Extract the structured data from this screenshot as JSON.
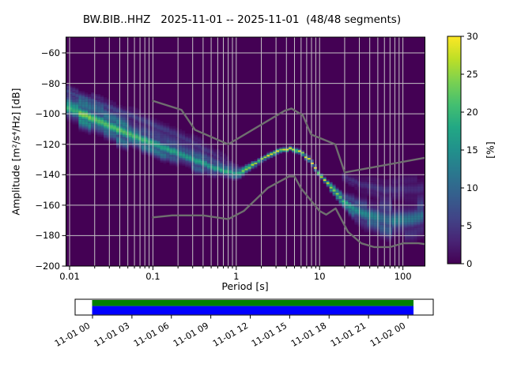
{
  "figure": {
    "title": "BW.BIB..HHZ   2025-11-01 -- 2025-11-01  (48/48 segments)",
    "background": "#ffffff"
  },
  "chart_data": {
    "type": "heatmap",
    "description": "PPSD probabilistic power spectral density plot, viridis colormap, with Peterson NLNM/NHNM noise model curves",
    "title": "BW.BIB..HHZ   2025-11-01 -- 2025-11-01  (48/48 segments)",
    "xlabel": "Period [s]",
    "ylabel": "Amplitude [m²/s⁴/Hz] [dB]",
    "xscale": "log",
    "xlim": [
      0.00906,
      183.9
    ],
    "ylim": [
      -200,
      -49.6
    ],
    "grid": true,
    "x_ticks": {
      "values": [
        0.01,
        0.1,
        1,
        10,
        100
      ],
      "labels": [
        "0.01",
        "0.1",
        "1",
        "10",
        "100"
      ]
    },
    "y_ticks": {
      "values": [
        -60,
        -80,
        -100,
        -120,
        -140,
        -160,
        -180,
        -200
      ],
      "labels": [
        "−60",
        "−80",
        "−100",
        "−120",
        "−140",
        "−160",
        "−180",
        "−200"
      ]
    },
    "grid_color": "#cbcbcb",
    "background_color": "#440154",
    "spine_color": "#000000",
    "colorbar": {
      "label": "[%]",
      "vmin": 0,
      "vmax": 30,
      "ticks": [
        0,
        5,
        10,
        15,
        20,
        25,
        30
      ],
      "tick_labels": [
        "0",
        "5",
        "10",
        "15",
        "20",
        "25",
        "30"
      ],
      "colormap": "viridis",
      "stops": [
        [
          0,
          "#440154"
        ],
        [
          0.1,
          "#482475"
        ],
        [
          0.2,
          "#414487"
        ],
        [
          0.3,
          "#355f8d"
        ],
        [
          0.4,
          "#2a788e"
        ],
        [
          0.5,
          "#21918c"
        ],
        [
          0.6,
          "#22a884"
        ],
        [
          0.7,
          "#44bf70"
        ],
        [
          0.8,
          "#7ad151"
        ],
        [
          0.9,
          "#bddf26"
        ],
        [
          1,
          "#fde725"
        ]
      ]
    },
    "noise_models": {
      "color": "#6f6f6f",
      "nhnm": [
        [
          0.1,
          -91.5
        ],
        [
          0.22,
          -97.4
        ],
        [
          0.32,
          -110.5
        ],
        [
          0.8,
          -120.0
        ],
        [
          3.8,
          -98.0
        ],
        [
          4.6,
          -96.5
        ],
        [
          6.3,
          -101.0
        ],
        [
          7.9,
          -113.5
        ],
        [
          15.4,
          -120.0
        ],
        [
          20.0,
          -138.5
        ],
        [
          354.8,
          -126.0
        ]
      ],
      "nlnm": [
        [
          0.1,
          -168.0
        ],
        [
          0.17,
          -166.7
        ],
        [
          0.4,
          -166.7
        ],
        [
          0.8,
          -169.2
        ],
        [
          1.24,
          -163.7
        ],
        [
          2.4,
          -148.6
        ],
        [
          4.3,
          -141.1
        ],
        [
          5.0,
          -141.1
        ],
        [
          6.0,
          -149.0
        ],
        [
          10.0,
          -163.8
        ],
        [
          12.0,
          -166.2
        ],
        [
          15.6,
          -162.1
        ],
        [
          21.9,
          -177.5
        ],
        [
          31.6,
          -185.0
        ],
        [
          45.0,
          -187.5
        ],
        [
          70.0,
          -187.5
        ],
        [
          101.0,
          -185.0
        ],
        [
          154.0,
          -185.0
        ],
        [
          328.0,
          -187.5
        ]
      ]
    },
    "mode_curve": [
      [
        0.01,
        -95.5
      ],
      [
        0.02,
        -103.5
      ],
      [
        0.05,
        -113
      ],
      [
        0.1,
        -119.5
      ],
      [
        0.2,
        -126
      ],
      [
        0.4,
        -132.5
      ],
      [
        0.7,
        -137.5
      ],
      [
        1.05,
        -139.5
      ],
      [
        1.4,
        -135.5
      ],
      [
        2,
        -130
      ],
      [
        3,
        -125
      ],
      [
        4.5,
        -122.5
      ],
      [
        6,
        -125
      ],
      [
        8,
        -131.5
      ],
      [
        10,
        -140
      ],
      [
        13,
        -147
      ],
      [
        16,
        -152
      ],
      [
        20,
        -158
      ],
      [
        27,
        -163
      ],
      [
        40,
        -167
      ],
      [
        70,
        -170
      ],
      [
        110,
        -169.5
      ],
      [
        184,
        -167
      ]
    ],
    "density_bands": [
      {
        "name": "main-ridge",
        "points": [
          [
            0.00906,
            -95.5,
            5,
            26
          ],
          [
            0.02,
            -103.5,
            5,
            24
          ],
          [
            0.05,
            -113,
            4.5,
            22
          ],
          [
            0.1,
            -119.5,
            4,
            20
          ],
          [
            0.2,
            -126,
            4,
            18
          ],
          [
            0.4,
            -132.5,
            3.5,
            18
          ],
          [
            0.7,
            -137.5,
            2.8,
            20
          ],
          [
            1.05,
            -139.5,
            2,
            24
          ],
          [
            1.4,
            -135.5,
            1.4,
            27
          ],
          [
            2,
            -130,
            1.1,
            29
          ],
          [
            3,
            -125,
            1,
            30
          ],
          [
            4.5,
            -122.5,
            1,
            30
          ],
          [
            6,
            -125,
            1,
            30
          ],
          [
            8,
            -131.5,
            1.1,
            30
          ],
          [
            10,
            -140,
            1.2,
            29
          ],
          [
            13,
            -147,
            1.4,
            28
          ],
          [
            16,
            -152,
            1.7,
            26
          ],
          [
            20,
            -158,
            2.5,
            20
          ],
          [
            27,
            -163,
            4.5,
            15
          ],
          [
            40,
            -167,
            6,
            14
          ],
          [
            70,
            -170,
            6.5,
            14
          ],
          [
            110,
            -169.5,
            6.5,
            13
          ],
          [
            184,
            -167,
            6.5,
            12
          ]
        ]
      },
      {
        "name": "upper-faint-short-period",
        "points": [
          [
            0.00906,
            -85,
            2.2,
            7
          ],
          [
            0.02,
            -92,
            2.5,
            6
          ],
          [
            0.05,
            -100,
            3,
            6
          ],
          [
            0.1,
            -107,
            3.5,
            6
          ],
          [
            0.2,
            -114,
            3.5,
            5
          ],
          [
            0.45,
            -124,
            3,
            5
          ],
          [
            0.8,
            -132,
            2.5,
            4
          ],
          [
            1.2,
            -137,
            2,
            3
          ]
        ]
      },
      {
        "name": "upper-faint-long-period",
        "points": [
          [
            18,
            -140,
            2,
            4
          ],
          [
            30,
            -146,
            3,
            5
          ],
          [
            60,
            -150,
            4,
            5
          ],
          [
            184,
            -149,
            5,
            4
          ]
        ]
      }
    ],
    "histogram_bins": {
      "period_bins_per_octave": 8,
      "db_bin_width_db": 1
    }
  },
  "timeline": {
    "labels": [
      "11-01 00",
      "11-01 03",
      "11-01 06",
      "11-01 09",
      "11-01 12",
      "11-01 15",
      "11-01 18",
      "11-01 21",
      "11-02 00"
    ],
    "coverage_top_color": "#008000",
    "coverage_bottom_color": "#0000ff",
    "box_color": "#ffffff",
    "border_color": "#000000"
  }
}
